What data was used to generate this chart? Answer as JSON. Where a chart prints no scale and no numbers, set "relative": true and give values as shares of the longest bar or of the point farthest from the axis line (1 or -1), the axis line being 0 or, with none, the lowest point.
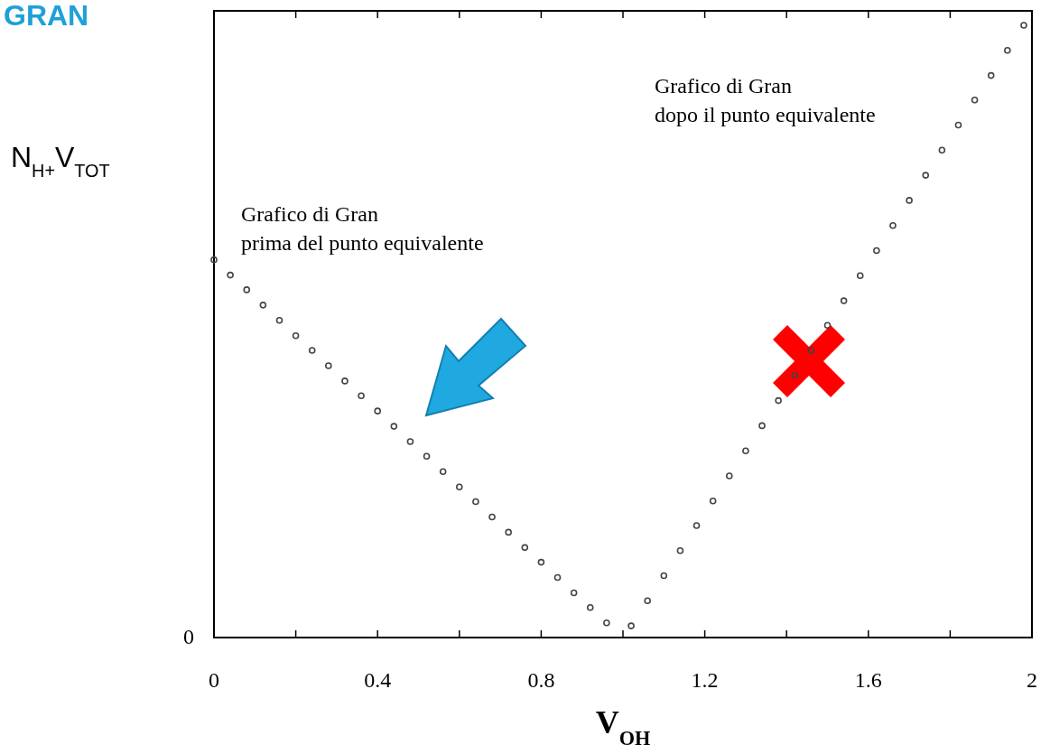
{
  "chart_data": {
    "type": "scatter",
    "title": "GRAN",
    "xlabel": "V$_{OH}$",
    "ylabel": "N$_{H+}$V$_{TOT}$",
    "relative": true,
    "marker": "circle",
    "xlim": [
      0,
      2
    ],
    "xticks": [
      0,
      {
        "value": 0.2,
        "label": null
      },
      0.4,
      {
        "value": 0.6,
        "label": null
      },
      0.8,
      {
        "value": 1.0,
        "label": null
      },
      1.2,
      {
        "value": 1.4,
        "label": null
      },
      1.6,
      {
        "value": 1.8,
        "label": null
      },
      2
    ],
    "annotations": [
      "Grafico di Gran\ndopo il punto equivalente",
      "Grafico di Gran\nprima del punto equivalente",
      "0"
    ],
    "series": [
      {
        "color": "#444444",
        "x": [
          0,
          0.04,
          0.08,
          0.12,
          0.16,
          0.2,
          0.24,
          0.28,
          0.32,
          0.36,
          0.4,
          0.44,
          0.48,
          0.52,
          0.56,
          0.6,
          0.64,
          0.68,
          0.72,
          0.76,
          0.8,
          0.84,
          0.88,
          0.92,
          0.96
        ],
        "values": [
          0.617,
          0.592,
          0.568,
          0.543,
          0.518,
          0.493,
          0.469,
          0.444,
          0.419,
          0.395,
          0.37,
          0.345,
          0.32,
          0.296,
          0.271,
          0.246,
          0.222,
          0.197,
          0.172,
          0.147,
          0.123,
          0.098,
          0.073,
          0.049,
          0.024
        ]
      },
      {
        "color": "#444444",
        "x": [
          1.02,
          1.06,
          1.1,
          1.14,
          1.18,
          1.22,
          1.26,
          1.3,
          1.34,
          1.38,
          1.42,
          1.46,
          1.5,
          1.54,
          1.58,
          1.62,
          1.66,
          1.7,
          1.74,
          1.78,
          1.82,
          1.86,
          1.9,
          1.94,
          1.98
        ],
        "values": [
          0.019,
          0.06,
          0.101,
          0.142,
          0.183,
          0.223,
          0.264,
          0.305,
          0.346,
          0.387,
          0.428,
          0.469,
          0.51,
          0.55,
          0.591,
          0.632,
          0.673,
          0.714,
          0.755,
          0.796,
          0.837,
          0.878,
          0.918,
          0.959,
          1.0
        ]
      }
    ]
  }
}
